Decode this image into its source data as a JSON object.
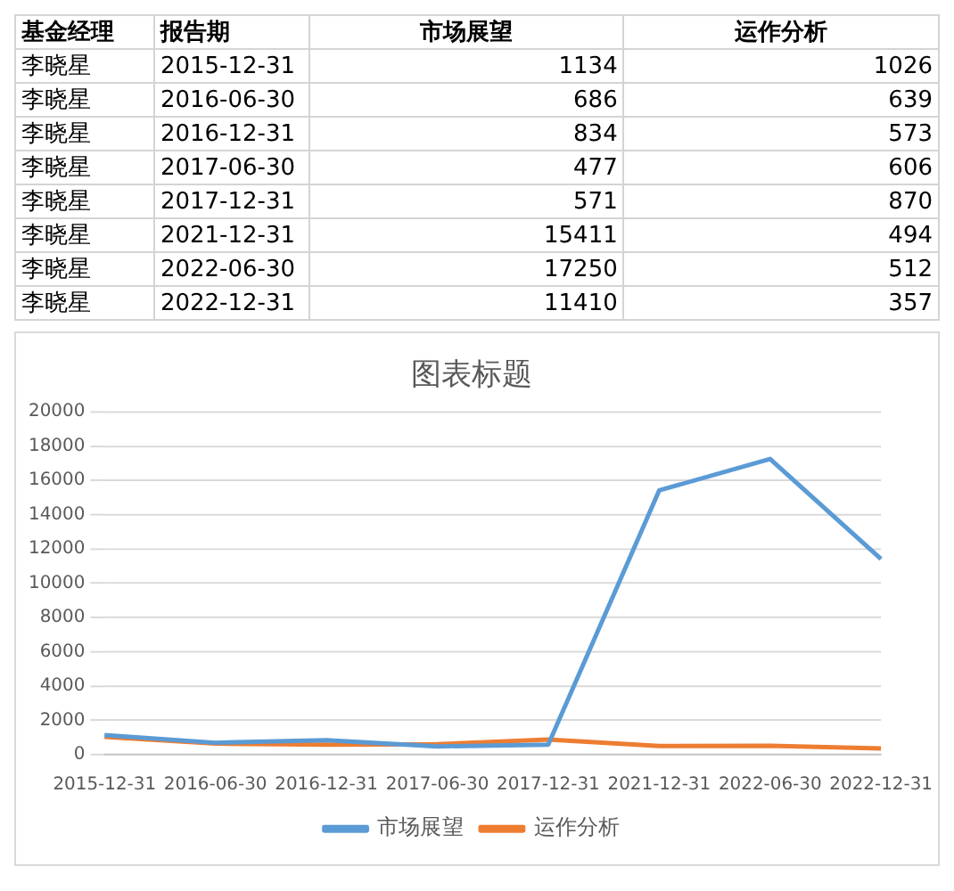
{
  "chart_data": [
    {
      "type": "heatmap",
      "categories": [
        "市场展望",
        "运作分析"
      ],
      "y_categories": [
        "2015-12-31",
        "2016-06-30",
        "2016-12-31",
        "2017-06-30",
        "2017-12-31",
        "2021-12-31",
        "2022-06-30",
        "2022-12-31"
      ],
      "cells": [
        [
          1134,
          1026
        ],
        [
          686,
          639
        ],
        [
          834,
          573
        ],
        [
          477,
          606
        ],
        [
          571,
          870
        ],
        [
          15411,
          494
        ],
        [
          17250,
          512
        ],
        [
          11410,
          357
        ]
      ],
      "data_labels": true,
      "annotations": [
        "基金经理",
        "李晓星",
        "报告期"
      ]
    },
    {
      "type": "line",
      "title": "图表标题",
      "categories": [
        "2015-12-31",
        "2016-06-30",
        "2016-12-31",
        "2017-06-30",
        "2017-12-31",
        "2021-12-31",
        "2022-06-30",
        "2022-12-31"
      ],
      "series": [
        {
          "name": "市场展望",
          "color": "#5b9bd5",
          "values": [
            1134,
            686,
            834,
            477,
            571,
            15411,
            17250,
            11410
          ]
        },
        {
          "name": "运作分析",
          "color": "#ed7d31",
          "values": [
            1026,
            639,
            573,
            606,
            870,
            494,
            512,
            357
          ]
        }
      ],
      "ylim": [
        0,
        20000
      ],
      "yticks": [
        0,
        2000,
        4000,
        6000,
        8000,
        10000,
        12000,
        14000,
        16000,
        18000,
        20000
      ],
      "grid": "y",
      "legend": "bottom",
      "marker": "none",
      "line_style": "solid"
    }
  ]
}
